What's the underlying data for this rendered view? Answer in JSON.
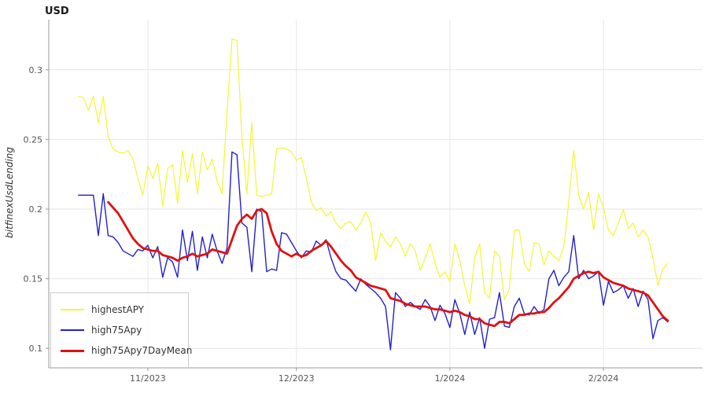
{
  "chart_data": {
    "type": "line",
    "title": "USD",
    "xlabel": "",
    "ylabel": "bitfinexUsdLending",
    "grid": true,
    "legend_position": "bottom-left",
    "x_unit": "days (daily samples, day 0 = first plotted point, months marked by ticks)",
    "xlim": [
      -6,
      126
    ],
    "ylim": [
      0.086,
      0.336
    ],
    "y_ticks": [
      0.1,
      0.15,
      0.2,
      0.25,
      0.3
    ],
    "x_ticks": [
      {
        "pos": 14,
        "label": "11/2023"
      },
      {
        "pos": 44,
        "label": "12/2023"
      },
      {
        "pos": 75,
        "label": "1/2024"
      },
      {
        "pos": 106,
        "label": "2/2024"
      }
    ],
    "colors": {
      "grid": "#e6e6e6",
      "axis": "#999999",
      "tick_label": "#555555",
      "legend_border": "#cccccc"
    },
    "series": [
      {
        "name": "highestAPY",
        "color": "#f5f533",
        "width": 1.2,
        "x_start": 0,
        "values": [
          0.281,
          0.28,
          0.271,
          0.281,
          0.262,
          0.281,
          0.252,
          0.243,
          0.241,
          0.24,
          0.242,
          0.236,
          0.222,
          0.21,
          0.231,
          0.222,
          0.233,
          0.202,
          0.229,
          0.232,
          0.204,
          0.242,
          0.219,
          0.24,
          0.211,
          0.241,
          0.228,
          0.236,
          0.22,
          0.211,
          0.27,
          0.322,
          0.321,
          0.252,
          0.211,
          0.262,
          0.21,
          0.209,
          0.21,
          0.211,
          0.243,
          0.244,
          0.243,
          0.241,
          0.235,
          0.237,
          0.222,
          0.205,
          0.199,
          0.201,
          0.195,
          0.198,
          0.19,
          0.186,
          0.19,
          0.191,
          0.185,
          0.19,
          0.198,
          0.19,
          0.163,
          0.183,
          0.177,
          0.173,
          0.18,
          0.175,
          0.166,
          0.175,
          0.17,
          0.156,
          0.165,
          0.175,
          0.161,
          0.151,
          0.155,
          0.148,
          0.175,
          0.163,
          0.145,
          0.132,
          0.165,
          0.175,
          0.14,
          0.136,
          0.17,
          0.166,
          0.135,
          0.143,
          0.185,
          0.185,
          0.161,
          0.155,
          0.176,
          0.175,
          0.16,
          0.17,
          0.166,
          0.163,
          0.173,
          0.205,
          0.242,
          0.21,
          0.2,
          0.212,
          0.185,
          0.211,
          0.201,
          0.185,
          0.181,
          0.19,
          0.2,
          0.186,
          0.19,
          0.18,
          0.185,
          0.18,
          0.165,
          0.145,
          0.157,
          0.161
        ]
      },
      {
        "name": "high75Apy",
        "color": "#2121cc",
        "width": 1.4,
        "x_start": 0,
        "values": [
          0.21,
          0.21,
          0.21,
          0.21,
          0.181,
          0.211,
          0.181,
          0.18,
          0.176,
          0.17,
          0.168,
          0.166,
          0.171,
          0.17,
          0.174,
          0.165,
          0.173,
          0.151,
          0.165,
          0.162,
          0.151,
          0.185,
          0.163,
          0.184,
          0.156,
          0.18,
          0.165,
          0.182,
          0.17,
          0.161,
          0.172,
          0.241,
          0.239,
          0.19,
          0.187,
          0.155,
          0.2,
          0.198,
          0.155,
          0.157,
          0.156,
          0.183,
          0.182,
          0.176,
          0.17,
          0.165,
          0.17,
          0.169,
          0.177,
          0.174,
          0.178,
          0.165,
          0.155,
          0.15,
          0.149,
          0.145,
          0.141,
          0.15,
          0.146,
          0.143,
          0.14,
          0.136,
          0.13,
          0.099,
          0.14,
          0.136,
          0.13,
          0.133,
          0.13,
          0.128,
          0.135,
          0.13,
          0.12,
          0.131,
          0.125,
          0.115,
          0.135,
          0.125,
          0.11,
          0.126,
          0.11,
          0.122,
          0.1,
          0.121,
          0.122,
          0.14,
          0.116,
          0.115,
          0.13,
          0.136,
          0.125,
          0.124,
          0.13,
          0.125,
          0.128,
          0.15,
          0.156,
          0.145,
          0.151,
          0.155,
          0.181,
          0.15,
          0.156,
          0.15,
          0.152,
          0.155,
          0.131,
          0.148,
          0.14,
          0.142,
          0.145,
          0.136,
          0.143,
          0.13,
          0.141,
          0.135,
          0.107,
          0.12,
          0.122,
          0.119
        ]
      },
      {
        "name": "high75Apy7DayMean",
        "color": "#e01111",
        "width": 2.8,
        "x_start": 6,
        "values": [
          0.205,
          0.201,
          0.197,
          0.191,
          0.185,
          0.179,
          0.175,
          0.172,
          0.171,
          0.17,
          0.17,
          0.167,
          0.166,
          0.165,
          0.163,
          0.165,
          0.166,
          0.168,
          0.166,
          0.167,
          0.168,
          0.171,
          0.17,
          0.169,
          0.168,
          0.178,
          0.188,
          0.193,
          0.196,
          0.193,
          0.199,
          0.2,
          0.197,
          0.184,
          0.175,
          0.17,
          0.168,
          0.166,
          0.168,
          0.166,
          0.167,
          0.17,
          0.172,
          0.174,
          0.177,
          0.173,
          0.168,
          0.163,
          0.159,
          0.156,
          0.151,
          0.149,
          0.147,
          0.145,
          0.144,
          0.143,
          0.142,
          0.136,
          0.135,
          0.134,
          0.132,
          0.131,
          0.13,
          0.13,
          0.13,
          0.129,
          0.128,
          0.128,
          0.127,
          0.126,
          0.127,
          0.126,
          0.124,
          0.123,
          0.121,
          0.121,
          0.118,
          0.117,
          0.116,
          0.119,
          0.119,
          0.118,
          0.121,
          0.124,
          0.124,
          0.125,
          0.125,
          0.126,
          0.126,
          0.129,
          0.133,
          0.136,
          0.14,
          0.144,
          0.15,
          0.152,
          0.154,
          0.155,
          0.154,
          0.155,
          0.151,
          0.149,
          0.147,
          0.146,
          0.145,
          0.143,
          0.142,
          0.141,
          0.14,
          0.138,
          0.133,
          0.128,
          0.123,
          0.12
        ]
      }
    ]
  },
  "legend": {
    "items": [
      {
        "label": "highestAPY"
      },
      {
        "label": "high75Apy"
      },
      {
        "label": "high75Apy7DayMean"
      }
    ]
  }
}
